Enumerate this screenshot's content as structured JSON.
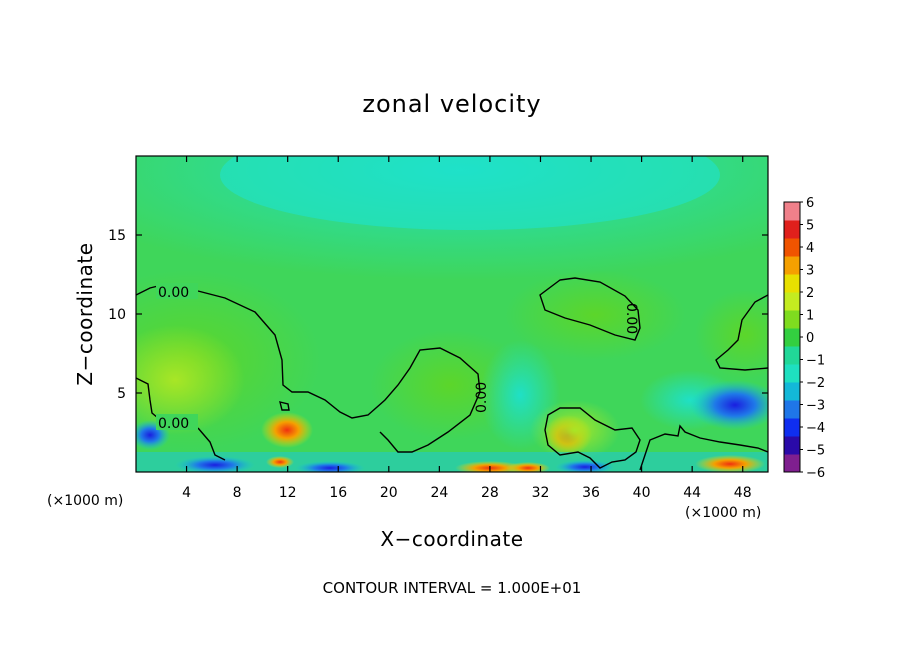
{
  "chart_data": {
    "type": "heatmap",
    "title": "zonal velocity",
    "xlabel": "X−coordinate",
    "ylabel": "Z−coordinate",
    "x_unit": "(×1000 m)",
    "y_unit": "(×1000 m)",
    "xlim": [
      0,
      50
    ],
    "ylim": [
      0,
      20
    ],
    "x_ticks": [
      "4",
      "8",
      "12",
      "16",
      "20",
      "24",
      "28",
      "32",
      "36",
      "40",
      "44",
      "48"
    ],
    "y_ticks": [
      "5",
      "10",
      "15"
    ],
    "colorbar": {
      "ticks": [
        "6",
        "5",
        "4",
        "3",
        "2",
        "1",
        "0",
        "−1",
        "−2",
        "−3",
        "−4",
        "−5",
        "−6"
      ],
      "range": [
        -6,
        6
      ],
      "colors": [
        "#7f1f8f",
        "#2a0aa8",
        "#0f2ef0",
        "#1f76e8",
        "#13b8d8",
        "#1ee0c0",
        "#21d898",
        "#33cf40",
        "#7fdc1f",
        "#c4ec20",
        "#e8e000",
        "#f5a000",
        "#f05400",
        "#e0201c",
        "#f0808a"
      ]
    },
    "contour_interval": "CONTOUR INTERVAL = 1.000E+01",
    "contour_labels": [
      "0.00",
      "0.00",
      "0.00",
      "0.00"
    ],
    "field_features": [
      {
        "x": 26,
        "z": 17.5,
        "value": -1.6
      },
      {
        "x": 3,
        "z": 6.5,
        "value": 1.1
      },
      {
        "x": 12,
        "z": 2.6,
        "value": 3.5
      },
      {
        "x": 34,
        "z": 2.3,
        "value": 3.2
      },
      {
        "x": 47,
        "z": 4.2,
        "value": -4.2
      },
      {
        "x": 22,
        "z": 6.0,
        "value": 0.9
      },
      {
        "x": 38,
        "z": 10.5,
        "value": 0.6
      },
      {
        "x": 47,
        "z": 0.5,
        "value": 5.5
      },
      {
        "x": 30,
        "z": 0.4,
        "value": 4.5
      }
    ]
  }
}
